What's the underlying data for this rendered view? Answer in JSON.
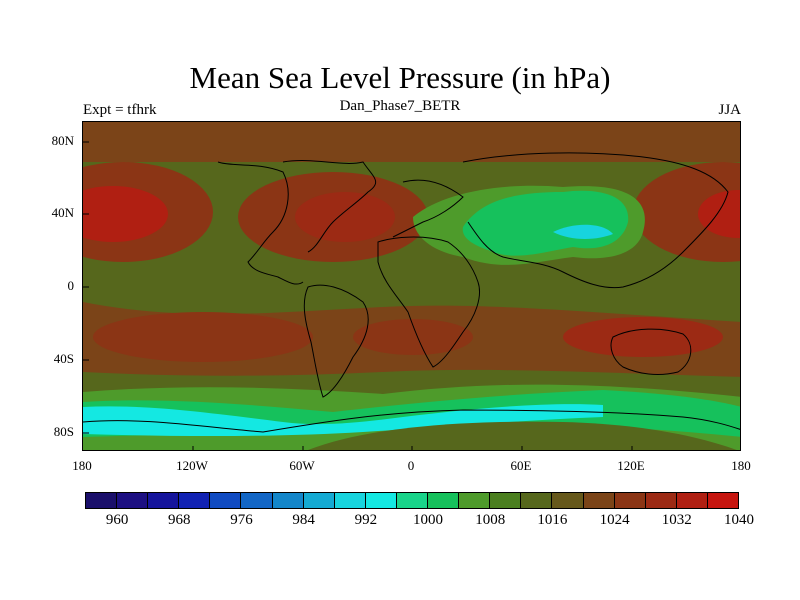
{
  "title": "Mean Sea Level Pressure (in hPa)",
  "subtitle_left": "Expt = tfhrk",
  "subtitle_center": "Dan_Phase7_BETR",
  "subtitle_right": "JJA",
  "y_axis_labels": [
    "80N",
    "40N",
    "0",
    "40S",
    "80S"
  ],
  "x_axis_labels": [
    "180",
    "120W",
    "60W",
    "0",
    "60E",
    "120E",
    "180"
  ],
  "colorbar": {
    "colors": [
      "#1a0f6b",
      "#1c0f82",
      "#15149c",
      "#1122b3",
      "#104bc2",
      "#1266c6",
      "#1386ca",
      "#14aad3",
      "#17d4de",
      "#14e8e2",
      "#19d48a",
      "#16c15c",
      "#4e9b2b",
      "#4b7f1f",
      "#56671c",
      "#66581b",
      "#7b4418",
      "#8b3515",
      "#9c2a14",
      "#b01f12",
      "#c6150f"
    ],
    "labels": [
      "960",
      "968",
      "976",
      "984",
      "992",
      "1000",
      "1008",
      "1016",
      "1024",
      "1032",
      "1040"
    ]
  },
  "legend_levels": {
    "1000": "#14e8e2",
    "1008": "#16c15c",
    "1016": "#4b7f1f",
    "1024": "#7b4418",
    "1032": "#9c2a14",
    "1040": "#c6150f"
  }
}
